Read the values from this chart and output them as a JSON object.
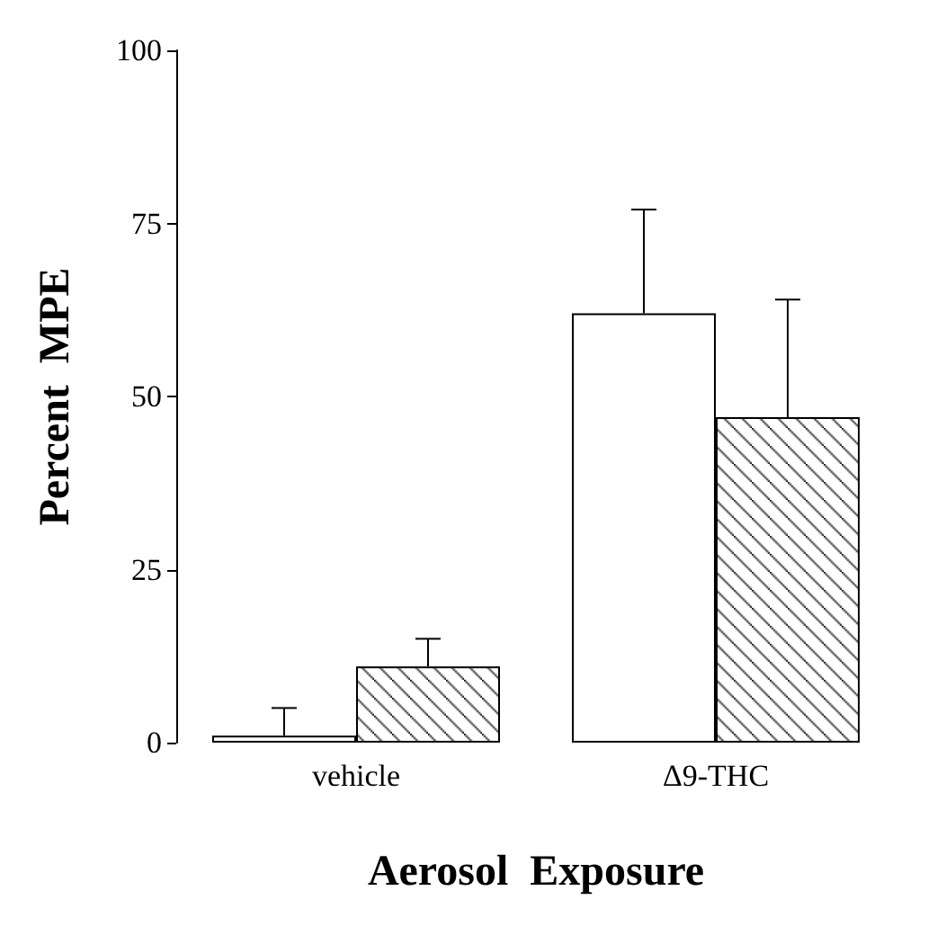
{
  "chart_data": {
    "type": "bar",
    "xlabel": "Aerosol  Exposure",
    "ylabel": "Percent  MPE",
    "categories": [
      "vehicle",
      "Δ9-THC"
    ],
    "series": [
      {
        "color": "#ffffff",
        "values": [
          1,
          62
        ],
        "errors": [
          [
            1,
            5
          ],
          [
            62,
            77
          ]
        ]
      },
      {
        "color": "#000000",
        "values": [
          11,
          47
        ],
        "errors": [
          [
            11,
            15
          ],
          [
            47,
            64
          ]
        ]
      }
    ],
    "ylim": [
      0,
      100
    ],
    "yticks": [
      0,
      25,
      50,
      75,
      100
    ]
  }
}
